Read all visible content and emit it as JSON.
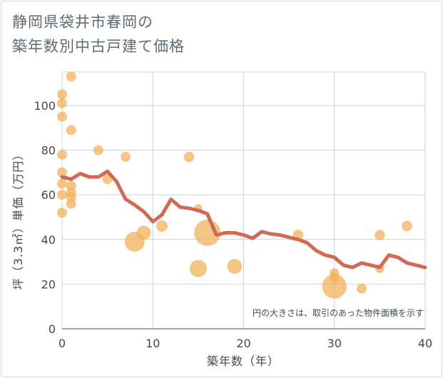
{
  "chart_data": {
    "type": "scatter",
    "title_lines": [
      "静岡県袋井市春岡の",
      "築年数別中古戸建て価格"
    ],
    "xlabel": "築年数（年）",
    "ylabel": "坪（3.3㎡）単価（万円）",
    "xlim": [
      0,
      40
    ],
    "ylim": [
      0,
      115
    ],
    "xticks": [
      0,
      10,
      20,
      30,
      40
    ],
    "yticks": [
      0,
      20,
      40,
      60,
      80,
      100
    ],
    "note": "円の大きさは、取引のあった物件面積を示す",
    "colors": {
      "bubble": "#f0b25c",
      "line": "#cf6b55",
      "grid": "#c9d3dc"
    },
    "scatter_points": [
      {
        "x": 0,
        "y": 105,
        "size": 1
      },
      {
        "x": 0,
        "y": 101,
        "size": 1
      },
      {
        "x": 0,
        "y": 95,
        "size": 1
      },
      {
        "x": 0,
        "y": 78,
        "size": 1
      },
      {
        "x": 0,
        "y": 70,
        "size": 1
      },
      {
        "x": 0,
        "y": 65,
        "size": 1
      },
      {
        "x": 0,
        "y": 60,
        "size": 1
      },
      {
        "x": 0,
        "y": 52,
        "size": 1
      },
      {
        "x": 1,
        "y": 113,
        "size": 1
      },
      {
        "x": 1,
        "y": 89,
        "size": 1
      },
      {
        "x": 1,
        "y": 64,
        "size": 1
      },
      {
        "x": 1,
        "y": 61,
        "size": 1
      },
      {
        "x": 1,
        "y": 59,
        "size": 1
      },
      {
        "x": 1,
        "y": 56,
        "size": 1
      },
      {
        "x": 4,
        "y": 80,
        "size": 1
      },
      {
        "x": 5,
        "y": 67,
        "size": 1
      },
      {
        "x": 7,
        "y": 77,
        "size": 1
      },
      {
        "x": 8,
        "y": 39,
        "size": 4
      },
      {
        "x": 9,
        "y": 43,
        "size": 2
      },
      {
        "x": 11,
        "y": 46,
        "size": 1.3
      },
      {
        "x": 14,
        "y": 77,
        "size": 1.1
      },
      {
        "x": 15,
        "y": 54,
        "size": 0.7
      },
      {
        "x": 15,
        "y": 27,
        "size": 3
      },
      {
        "x": 16,
        "y": 43,
        "size": 7
      },
      {
        "x": 19,
        "y": 28,
        "size": 2.2
      },
      {
        "x": 26,
        "y": 42,
        "size": 1.1
      },
      {
        "x": 30,
        "y": 25,
        "size": 0.9
      },
      {
        "x": 30,
        "y": 23,
        "size": 0.9
      },
      {
        "x": 30,
        "y": 19,
        "size": 6
      },
      {
        "x": 33,
        "y": 18,
        "size": 1
      },
      {
        "x": 35,
        "y": 42,
        "size": 1.1
      },
      {
        "x": 35,
        "y": 27,
        "size": 0.8
      },
      {
        "x": 38,
        "y": 46,
        "size": 1.1
      }
    ],
    "trend_line": {
      "x": [
        0,
        1,
        2,
        3,
        4,
        5,
        6,
        7,
        8,
        9,
        10,
        11,
        12,
        13,
        14,
        15,
        16,
        17,
        18,
        19,
        20,
        21,
        22,
        23,
        24,
        25,
        26,
        27,
        28,
        29,
        30,
        31,
        32,
        33,
        34,
        35,
        36,
        37,
        38,
        39,
        40
      ],
      "y": [
        68,
        67,
        69.5,
        68,
        68,
        70.5,
        66,
        58,
        55.5,
        52.5,
        48,
        51,
        58,
        54.5,
        54,
        53,
        51.5,
        42,
        43,
        43,
        42,
        40.5,
        43.5,
        42.5,
        42,
        41,
        40,
        38.5,
        35,
        33,
        32,
        28.5,
        27.5,
        29.5,
        28.5,
        27.5,
        33,
        32,
        29.5,
        28.5,
        27.5
      ]
    }
  }
}
